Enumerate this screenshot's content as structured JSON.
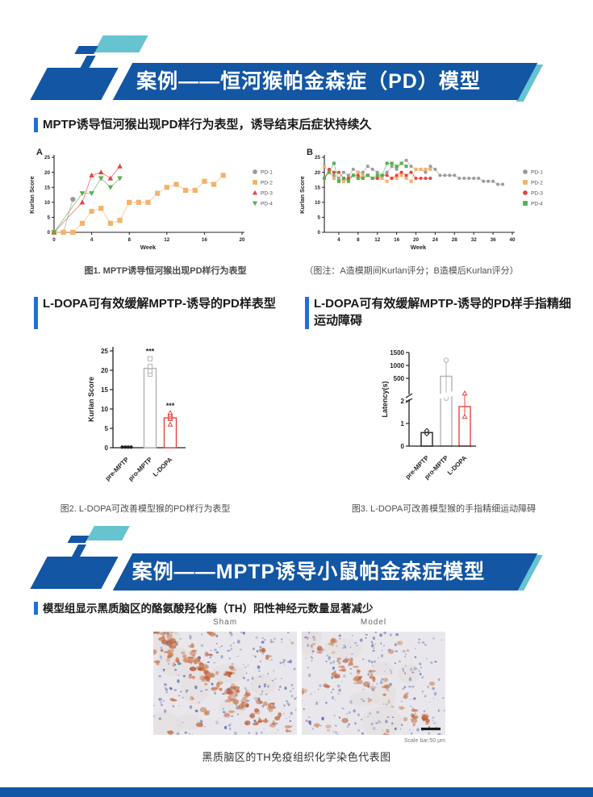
{
  "colors": {
    "banner_blue": "#1356a4",
    "teal": "#66c3d0",
    "accent_bar_blue": "#1b72d3",
    "axis_black": "#231f20",
    "bar_gray": "#b3b3b3",
    "bar_red": "#e8433e",
    "footer_blue": "#1356a4"
  },
  "banner1": {
    "title": "案例——恒河猴帕金森症（PD）模型"
  },
  "banner2": {
    "title": "案例——MPTP诱导小鼠帕金森症模型"
  },
  "sections": {
    "s1": "MPTP诱导恒河猴出现PD样行为表型，诱导结束后症状持续久",
    "s2_left": "L-DOPA可有效缓解MPTP-诱导的PD样表型",
    "s2_right": "L-DOPA可有效缓解MPTP-诱导的PD样手指精细运动障碍",
    "s3": "模型组显示黑质脑区的酪氨酸羟化酶（TH）阳性神经元数量显著减少"
  },
  "captions": {
    "fig1": "图1. MPTP诱导恒河猴出现PD样行为表型",
    "fig1_note": "（图注：A造模期间Kurlan评分；B造模后Kurlan评分）",
    "fig2": "图2. L-DOPA可改善模型猴的PD样行为表型",
    "fig3": "图3. L-DOPA可改善模型猴的手指精细运动障碍",
    "histology": "黑质脑区的TH免疫组织化学染色代表图"
  },
  "histology": {
    "left_label": "Sham",
    "right_label": "Model",
    "scale_text": "Scale bar:50 μm"
  },
  "chart_data": [
    {
      "id": "fig1a",
      "type": "line",
      "panel_label": "A",
      "xlabel": "Week",
      "ylabel": "Kurlan Score",
      "xlim": [
        0,
        20
      ],
      "xticks": [
        0,
        4,
        8,
        12,
        16,
        20
      ],
      "ylim": [
        0,
        25
      ],
      "yticks": [
        0,
        5,
        10,
        15,
        20,
        25
      ],
      "legend_position": "right",
      "marker_size": 2.8,
      "series": [
        {
          "name": "PD-1",
          "color": "#9b9b9b",
          "marker": "circle",
          "x": [
            0,
            1,
            2
          ],
          "y": [
            0,
            0,
            11
          ]
        },
        {
          "name": "PD-2",
          "color": "#f4b26a",
          "marker": "square",
          "x0": 0,
          "y": [
            0,
            0,
            0,
            3,
            7,
            8,
            3,
            4,
            10,
            10,
            10,
            13,
            15,
            16,
            14,
            14,
            17,
            16,
            19
          ]
        },
        {
          "name": "PD-3",
          "color": "#e8433e",
          "marker": "tri-up",
          "x": [
            0,
            3,
            4,
            5,
            6,
            7
          ],
          "y": [
            0,
            10,
            19,
            20,
            18,
            22
          ]
        },
        {
          "name": "PD-4",
          "color": "#57b04c",
          "marker": "tri-down",
          "x": [
            0,
            3,
            4,
            5,
            6,
            7
          ],
          "y": [
            0,
            13,
            13,
            18,
            15,
            18
          ]
        }
      ]
    },
    {
      "id": "fig1b",
      "type": "line",
      "panel_label": "B",
      "xlabel": "Week",
      "ylabel": "Kurlan Score",
      "xlim": [
        1,
        40
      ],
      "xticks": [
        4,
        8,
        12,
        16,
        20,
        24,
        28,
        32,
        36,
        40
      ],
      "ylim": [
        0,
        25
      ],
      "yticks": [
        0,
        5,
        10,
        15,
        20,
        25
      ],
      "legend_position": "right",
      "marker_size": 1.7,
      "series": [
        {
          "name": "PD-1",
          "color": "#9b9b9b",
          "marker": "circle",
          "x0": 1,
          "y": [
            18,
            20,
            19,
            18,
            20,
            19,
            21,
            20,
            20,
            22,
            21,
            20,
            19,
            20,
            22,
            21,
            23,
            24,
            22,
            21,
            21,
            20,
            22,
            21,
            19,
            19,
            19,
            19,
            18,
            18,
            18,
            18,
            18,
            17,
            17,
            17,
            16,
            16
          ]
        },
        {
          "name": "PD-2",
          "color": "#f4b26a",
          "marker": "square",
          "x0": 1,
          "y": [
            22,
            20,
            18,
            17,
            17,
            18,
            19,
            20,
            19,
            19,
            18,
            18,
            18,
            17,
            18,
            18,
            19,
            18,
            17,
            21,
            21,
            21,
            21
          ]
        },
        {
          "name": "PD-3",
          "color": "#e8433e",
          "marker": "circle",
          "x0": 1,
          "y": [
            18,
            21,
            20,
            20,
            18,
            18,
            19,
            19,
            18,
            19,
            18,
            18,
            19,
            19,
            18,
            19,
            20,
            19,
            20,
            18,
            18,
            18,
            18
          ]
        },
        {
          "name": "PD-4",
          "color": "#57b04c",
          "marker": "square",
          "x0": 1,
          "y": [
            18,
            20,
            23,
            17,
            18,
            17,
            19,
            18,
            18,
            19,
            18,
            19,
            19,
            23,
            23,
            22,
            23,
            22
          ]
        }
      ]
    },
    {
      "id": "fig2",
      "type": "bar",
      "ylabel": "Kurlan Score",
      "ylim": [
        0,
        25
      ],
      "yticks": [
        0,
        5,
        10,
        15,
        20,
        25
      ],
      "categories": [
        "pre-MPTP",
        "pro-MPTP",
        "L-DOPA"
      ],
      "values": [
        0,
        20.5,
        7.7
      ],
      "errors": [
        [
          0,
          0
        ],
        [
          19.7,
          21.3
        ],
        [
          7,
          8.4
        ]
      ],
      "points": [
        [
          0.15,
          0.15,
          0.15,
          0.15
        ],
        [
          19,
          19.8,
          21,
          23
        ],
        [
          6,
          7.5,
          8,
          8.4,
          9
        ]
      ],
      "point_markers": [
        "circle",
        "square",
        "tri-up"
      ],
      "point_open": [
        false,
        true,
        true
      ],
      "significance": [
        "",
        "***",
        "***"
      ],
      "bar_styles": [
        "black",
        "gray",
        "red"
      ]
    },
    {
      "id": "fig3",
      "type": "bar-broken",
      "ylabel": "Latency(s)",
      "lower_lim": [
        0,
        2
      ],
      "lower_ticks": [
        0,
        1,
        2
      ],
      "upper_lim": [
        500,
        1500
      ],
      "upper_ticks": [
        500,
        1000,
        1500
      ],
      "categories": [
        "pre-MPTP",
        "pro-MPTP",
        "L-DOPA"
      ],
      "values": [
        0.6,
        580,
        1.75
      ],
      "points": [
        [
          0.55,
          0.68
        ],
        [
          1200,
          60
        ],
        [
          170,
          1.3
        ]
      ],
      "point_markers": [
        "diamond",
        "circle",
        "tri-up"
      ],
      "bar_styles": [
        "black",
        "gray",
        "red"
      ]
    }
  ]
}
